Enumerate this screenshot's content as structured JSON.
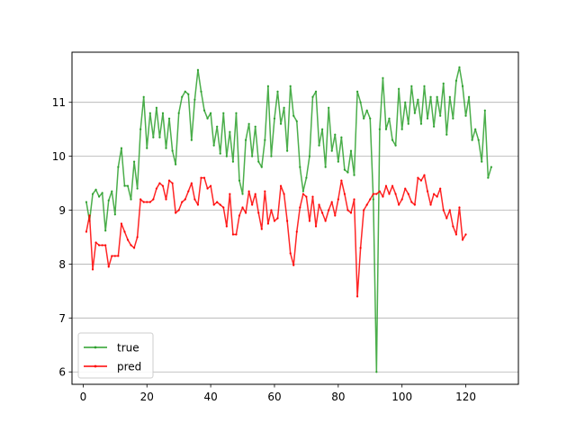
{
  "chart_data": {
    "type": "line",
    "title": "",
    "xlabel": "",
    "ylabel": "",
    "xlim": [
      -3.5,
      136.5
    ],
    "ylim": [
      5.77,
      11.93
    ],
    "x_ticks": [
      0,
      20,
      40,
      60,
      80,
      100,
      120
    ],
    "y_ticks": [
      6,
      7,
      8,
      9,
      10,
      11
    ],
    "grid": "horizontal",
    "legend_position": "lower-left",
    "series": [
      {
        "name": "true",
        "color": "#2ca02c",
        "points": [
          [
            1,
            9.15
          ],
          [
            2,
            8.8
          ],
          [
            3,
            9.3
          ],
          [
            4,
            9.38
          ],
          [
            5,
            9.25
          ],
          [
            6,
            9.32
          ],
          [
            7,
            8.62
          ],
          [
            8,
            9.18
          ],
          [
            9,
            9.35
          ],
          [
            10,
            8.92
          ],
          [
            11,
            9.8
          ],
          [
            12,
            10.15
          ],
          [
            13,
            9.45
          ],
          [
            14,
            9.45
          ],
          [
            15,
            9.2
          ],
          [
            16,
            9.9
          ],
          [
            17,
            9.4
          ],
          [
            18,
            10.5
          ],
          [
            19,
            11.1
          ],
          [
            20,
            10.15
          ],
          [
            21,
            10.8
          ],
          [
            22,
            10.35
          ],
          [
            23,
            10.9
          ],
          [
            24,
            10.35
          ],
          [
            25,
            10.8
          ],
          [
            26,
            10.15
          ],
          [
            27,
            10.7
          ],
          [
            28,
            10.1
          ],
          [
            29,
            9.85
          ],
          [
            30,
            10.8
          ],
          [
            31,
            11.1
          ],
          [
            32,
            11.2
          ],
          [
            33,
            11.15
          ],
          [
            34,
            10.3
          ],
          [
            35,
            11.05
          ],
          [
            36,
            11.6
          ],
          [
            37,
            11.2
          ],
          [
            38,
            10.85
          ],
          [
            39,
            10.7
          ],
          [
            40,
            10.8
          ],
          [
            41,
            10.2
          ],
          [
            42,
            10.55
          ],
          [
            43,
            10.05
          ],
          [
            44,
            10.8
          ],
          [
            45,
            10.0
          ],
          [
            46,
            10.45
          ],
          [
            47,
            9.9
          ],
          [
            48,
            10.8
          ],
          [
            49,
            9.55
          ],
          [
            50,
            9.3
          ],
          [
            51,
            10.3
          ],
          [
            52,
            10.6
          ],
          [
            53,
            10.0
          ],
          [
            54,
            10.55
          ],
          [
            55,
            9.9
          ],
          [
            56,
            9.8
          ],
          [
            57,
            10.3
          ],
          [
            58,
            11.3
          ],
          [
            59,
            10.0
          ],
          [
            60,
            10.7
          ],
          [
            61,
            11.2
          ],
          [
            62,
            10.6
          ],
          [
            63,
            10.9
          ],
          [
            64,
            10.1
          ],
          [
            65,
            11.3
          ],
          [
            66,
            10.75
          ],
          [
            67,
            10.65
          ],
          [
            68,
            9.8
          ],
          [
            69,
            9.35
          ],
          [
            70,
            9.6
          ],
          [
            71,
            10.0
          ],
          [
            72,
            11.1
          ],
          [
            73,
            11.2
          ],
          [
            74,
            10.2
          ],
          [
            75,
            10.5
          ],
          [
            76,
            9.8
          ],
          [
            77,
            10.9
          ],
          [
            78,
            10.1
          ],
          [
            79,
            10.4
          ],
          [
            80,
            9.9
          ],
          [
            81,
            10.35
          ],
          [
            82,
            9.75
          ],
          [
            83,
            9.7
          ],
          [
            84,
            10.1
          ],
          [
            85,
            9.65
          ],
          [
            86,
            11.2
          ],
          [
            87,
            11.0
          ],
          [
            88,
            10.7
          ],
          [
            89,
            10.85
          ],
          [
            90,
            10.7
          ],
          [
            91,
            9.2
          ],
          [
            92,
            6.0
          ],
          [
            93,
            10.5
          ],
          [
            94,
            11.45
          ],
          [
            95,
            10.5
          ],
          [
            96,
            10.7
          ],
          [
            97,
            10.3
          ],
          [
            98,
            10.2
          ],
          [
            99,
            11.25
          ],
          [
            100,
            10.5
          ],
          [
            101,
            11.0
          ],
          [
            102,
            10.6
          ],
          [
            103,
            11.3
          ],
          [
            104,
            10.8
          ],
          [
            105,
            11.05
          ],
          [
            106,
            10.6
          ],
          [
            107,
            11.3
          ],
          [
            108,
            10.7
          ],
          [
            109,
            11.1
          ],
          [
            110,
            10.55
          ],
          [
            111,
            11.1
          ],
          [
            112,
            10.75
          ],
          [
            113,
            11.35
          ],
          [
            114,
            10.4
          ],
          [
            115,
            11.1
          ],
          [
            116,
            10.7
          ],
          [
            117,
            11.4
          ],
          [
            118,
            11.65
          ],
          [
            119,
            11.3
          ],
          [
            120,
            10.75
          ],
          [
            121,
            11.1
          ],
          [
            122,
            10.3
          ],
          [
            123,
            10.5
          ],
          [
            124,
            10.3
          ],
          [
            125,
            9.9
          ],
          [
            126,
            10.85
          ],
          [
            127,
            9.6
          ],
          [
            128,
            9.8
          ]
        ]
      },
      {
        "name": "pred",
        "color": "#ff0000",
        "points": [
          [
            1,
            8.6
          ],
          [
            2,
            8.9
          ],
          [
            3,
            7.9
          ],
          [
            4,
            8.4
          ],
          [
            5,
            8.35
          ],
          [
            6,
            8.35
          ],
          [
            7,
            8.35
          ],
          [
            8,
            7.95
          ],
          [
            9,
            8.15
          ],
          [
            10,
            8.15
          ],
          [
            11,
            8.15
          ],
          [
            12,
            8.75
          ],
          [
            13,
            8.6
          ],
          [
            14,
            8.45
          ],
          [
            15,
            8.35
          ],
          [
            16,
            8.3
          ],
          [
            17,
            8.5
          ],
          [
            18,
            9.2
          ],
          [
            19,
            9.15
          ],
          [
            20,
            9.15
          ],
          [
            21,
            9.15
          ],
          [
            22,
            9.2
          ],
          [
            23,
            9.4
          ],
          [
            24,
            9.5
          ],
          [
            25,
            9.45
          ],
          [
            26,
            9.2
          ],
          [
            27,
            9.55
          ],
          [
            28,
            9.5
          ],
          [
            29,
            8.95
          ],
          [
            30,
            9.0
          ],
          [
            31,
            9.15
          ],
          [
            32,
            9.2
          ],
          [
            33,
            9.35
          ],
          [
            34,
            9.5
          ],
          [
            35,
            9.2
          ],
          [
            36,
            9.1
          ],
          [
            37,
            9.6
          ],
          [
            38,
            9.6
          ],
          [
            39,
            9.4
          ],
          [
            40,
            9.45
          ],
          [
            41,
            9.1
          ],
          [
            42,
            9.15
          ],
          [
            43,
            9.1
          ],
          [
            44,
            9.05
          ],
          [
            45,
            8.7
          ],
          [
            46,
            9.3
          ],
          [
            47,
            8.55
          ],
          [
            48,
            8.55
          ],
          [
            49,
            8.9
          ],
          [
            50,
            9.05
          ],
          [
            51,
            8.95
          ],
          [
            52,
            9.35
          ],
          [
            53,
            9.1
          ],
          [
            54,
            9.3
          ],
          [
            55,
            8.95
          ],
          [
            56,
            8.65
          ],
          [
            57,
            9.35
          ],
          [
            58,
            8.75
          ],
          [
            59,
            9.0
          ],
          [
            60,
            8.8
          ],
          [
            61,
            8.85
          ],
          [
            62,
            9.45
          ],
          [
            63,
            9.3
          ],
          [
            64,
            8.8
          ],
          [
            65,
            8.2
          ],
          [
            66,
            7.98
          ],
          [
            67,
            8.6
          ],
          [
            68,
            9.05
          ],
          [
            69,
            9.3
          ],
          [
            70,
            9.25
          ],
          [
            71,
            8.8
          ],
          [
            72,
            9.25
          ],
          [
            73,
            8.7
          ],
          [
            74,
            9.1
          ],
          [
            75,
            8.95
          ],
          [
            76,
            8.8
          ],
          [
            77,
            9.0
          ],
          [
            78,
            9.15
          ],
          [
            79,
            8.9
          ],
          [
            80,
            9.2
          ],
          [
            81,
            9.55
          ],
          [
            82,
            9.3
          ],
          [
            83,
            9.0
          ],
          [
            84,
            8.95
          ],
          [
            85,
            9.2
          ],
          [
            86,
            7.4
          ],
          [
            87,
            8.3
          ],
          [
            88,
            9.0
          ],
          [
            89,
            9.1
          ],
          [
            90,
            9.2
          ],
          [
            91,
            9.3
          ],
          [
            92,
            9.3
          ],
          [
            93,
            9.35
          ],
          [
            94,
            9.25
          ],
          [
            95,
            9.45
          ],
          [
            96,
            9.3
          ],
          [
            97,
            9.45
          ],
          [
            98,
            9.3
          ],
          [
            99,
            9.1
          ],
          [
            100,
            9.2
          ],
          [
            101,
            9.4
          ],
          [
            102,
            9.3
          ],
          [
            103,
            9.15
          ],
          [
            104,
            9.1
          ],
          [
            105,
            9.6
          ],
          [
            106,
            9.55
          ],
          [
            107,
            9.65
          ],
          [
            108,
            9.35
          ],
          [
            109,
            9.1
          ],
          [
            110,
            9.3
          ],
          [
            111,
            9.25
          ],
          [
            112,
            9.4
          ],
          [
            113,
            9.0
          ],
          [
            114,
            8.85
          ],
          [
            115,
            9.0
          ],
          [
            116,
            8.7
          ],
          [
            117,
            8.55
          ],
          [
            118,
            9.05
          ],
          [
            119,
            8.45
          ],
          [
            120,
            8.55
          ]
        ]
      }
    ]
  }
}
